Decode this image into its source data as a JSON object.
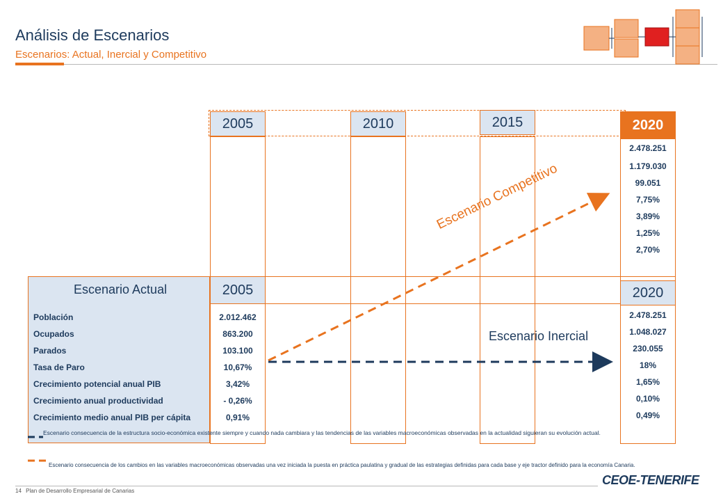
{
  "header": {
    "title": "Análisis de Escenarios",
    "subtitle": "Escenarios: Actual, Inercial y Competitivo"
  },
  "timeline": {
    "years": [
      "2005",
      "2010",
      "2015",
      "2020"
    ]
  },
  "competitivo": {
    "label": "Escenario Competitivo",
    "values": [
      "2.478.251",
      "1.179.030",
      "99.051",
      "7,75%",
      "3,89%",
      "1,25%",
      "2,70%"
    ]
  },
  "actual": {
    "label": "Escenario Actual",
    "year": "2005",
    "rows": [
      "Población",
      "Ocupados",
      "Parados",
      "Tasa de Paro",
      "Crecimiento potencial anual PIB",
      "Crecimiento anual productividad",
      "Crecimiento medio anual PIB per cápita"
    ],
    "values": [
      "2.012.462",
      "863.200",
      "103.100",
      "10,67%",
      "3,42%",
      "- 0,26%",
      "0,91%"
    ]
  },
  "inercial": {
    "label": "Escenario Inercial",
    "year": "2020",
    "values": [
      "2.478.251",
      "1.048.027",
      "230.055",
      "18%",
      "1,65%",
      "0,10%",
      "0,49%"
    ]
  },
  "legend": {
    "inercial_text": "Escenario consecuencia de la estructura socio-económica existente siempre y cuando nada cambiara y las tendencias de las variables macroeconómicas observadas en la actualidad siguieran su evolución actual.",
    "competitivo_text": "Escenario consecuencia de los cambios en las variables macroeconómicas observadas una vez iniciada la puesta en práctica paulatina y gradual de las estrategias definidas para cada base y eje tractor definido para la economía Canaria."
  },
  "footer": {
    "page": "14",
    "text": "Plan de Desarrollo Empresarial de Canarias"
  },
  "logo": {
    "text": "CEOE-TENERIFE"
  },
  "colors": {
    "accent": "#e8731f",
    "navy": "#1d3a5c",
    "light_blue": "#dbe5f1",
    "red": "#e02020"
  }
}
